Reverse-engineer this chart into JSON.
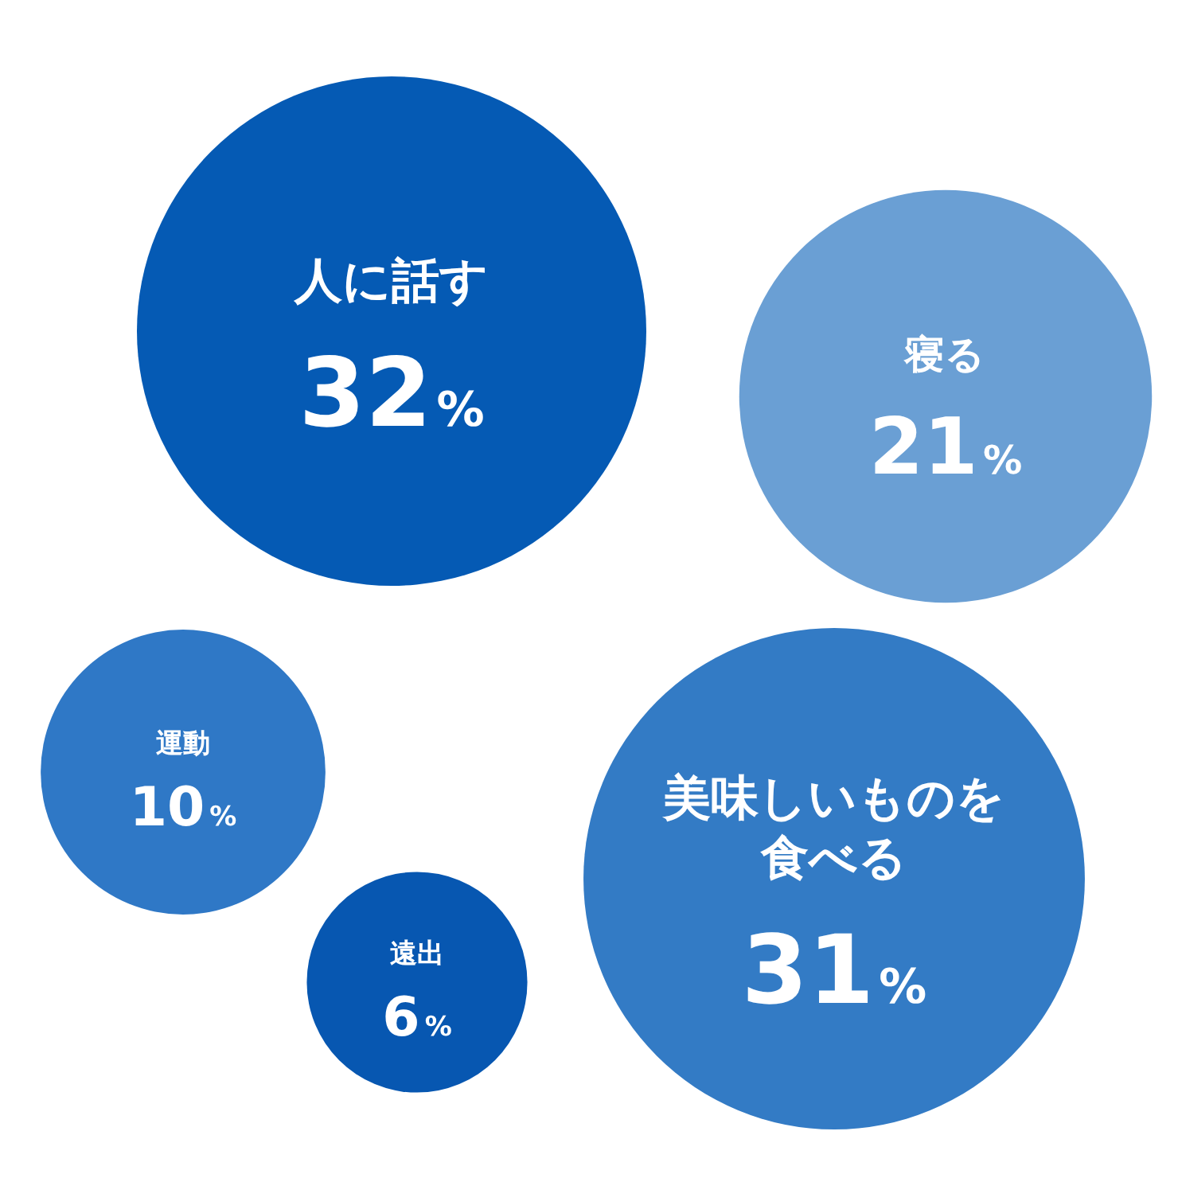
{
  "chart_data": {
    "type": "other",
    "categories": [
      "人に話す",
      "寝る",
      "運動",
      "遠出",
      "美味しいものを食べる"
    ],
    "values": [
      32,
      21,
      10,
      6,
      31
    ],
    "value_labels": [
      "32%",
      "21%",
      "10%",
      "6%",
      "31%"
    ],
    "colors": [
      "#055ab4",
      "#6a9fd4",
      "#2f78c6",
      "#0757b1",
      "#337bc5"
    ]
  }
}
